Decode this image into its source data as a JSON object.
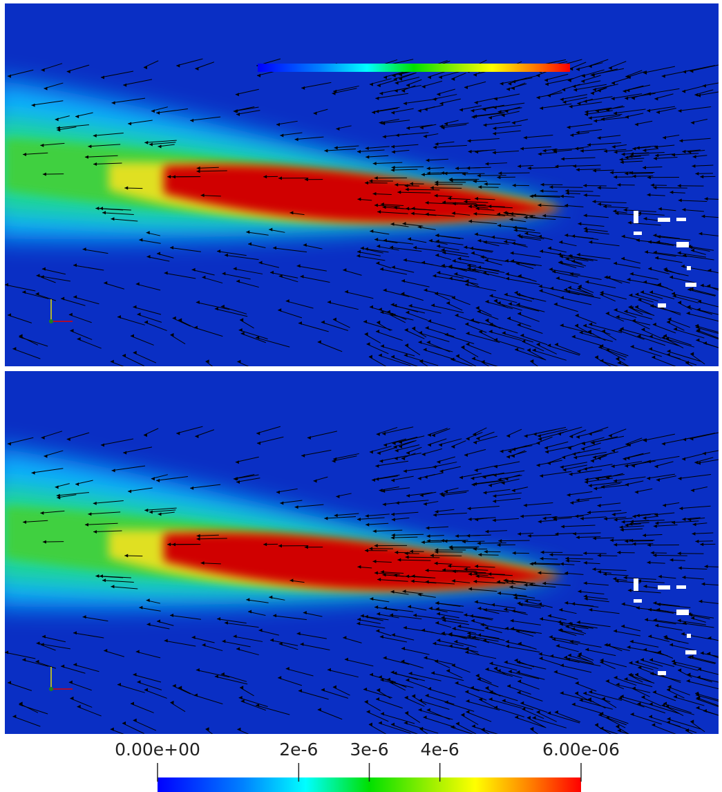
{
  "colorbar": {
    "range": [
      0,
      6e-06
    ],
    "ticks": [
      {
        "value": 0,
        "label": "0.00e+00"
      },
      {
        "value": 2e-06,
        "label": "2e-6"
      },
      {
        "value": 3e-06,
        "label": "3e-6"
      },
      {
        "value": 4e-06,
        "label": "4e-6"
      },
      {
        "value": 6e-06,
        "label": "6.00e-06"
      }
    ]
  }
}
